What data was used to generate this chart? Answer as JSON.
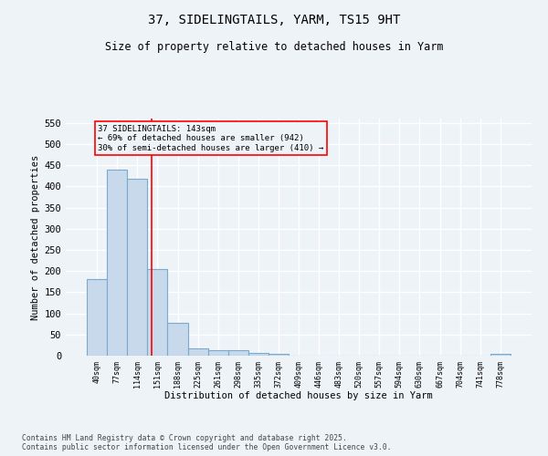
{
  "title_line1": "37, SIDELINGTAILS, YARM, TS15 9HT",
  "title_line2": "Size of property relative to detached houses in Yarm",
  "xlabel": "Distribution of detached houses by size in Yarm",
  "ylabel": "Number of detached properties",
  "bar_values": [
    180,
    440,
    417,
    204,
    78,
    17,
    13,
    12,
    6,
    5,
    0,
    0,
    0,
    0,
    0,
    0,
    0,
    0,
    0,
    0,
    5
  ],
  "bar_labels": [
    "40sqm",
    "77sqm",
    "114sqm",
    "151sqm",
    "188sqm",
    "225sqm",
    "261sqm",
    "298sqm",
    "335sqm",
    "372sqm",
    "409sqm",
    "446sqm",
    "483sqm",
    "520sqm",
    "557sqm",
    "594sqm",
    "630sqm",
    "667sqm",
    "704sqm",
    "741sqm",
    "778sqm"
  ],
  "bar_color": "#c8d9eb",
  "bar_edge_color": "#7aaacc",
  "ylim": [
    0,
    560
  ],
  "yticks": [
    0,
    50,
    100,
    150,
    200,
    250,
    300,
    350,
    400,
    450,
    500,
    550
  ],
  "red_line_x": 2.72,
  "annotation_text": "37 SIDELINGTAILS: 143sqm\n← 69% of detached houses are smaller (942)\n30% of semi-detached houses are larger (410) →",
  "footer_line1": "Contains HM Land Registry data © Crown copyright and database right 2025.",
  "footer_line2": "Contains public sector information licensed under the Open Government Licence v3.0.",
  "background_color": "#eef3f8",
  "grid_color": "#ffffff"
}
